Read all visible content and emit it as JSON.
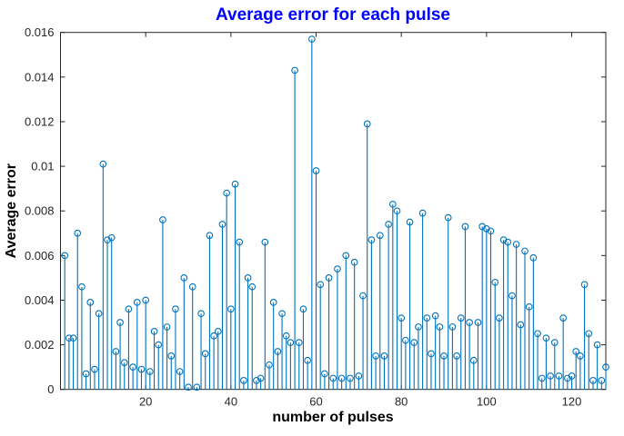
{
  "figure": {
    "background": "#ffffff"
  },
  "chart_data": {
    "type": "stem",
    "title": "Average error for each pulse",
    "xlabel": "number of pulses",
    "ylabel": "Average error",
    "title_color": "#0000ff",
    "stem_color": "#0072bd",
    "axis_color": "#262626",
    "marker": "open-circle",
    "grid": false,
    "legend": "none",
    "xlim": [
      0,
      128
    ],
    "ylim": [
      0,
      0.016
    ],
    "xticks": [
      20,
      40,
      60,
      80,
      100,
      120
    ],
    "xtick_labels": [
      "20",
      "40",
      "60",
      "80",
      "100",
      "120"
    ],
    "yticks": [
      0,
      0.002,
      0.004,
      0.006,
      0.008,
      0.01,
      0.012,
      0.014,
      0.016
    ],
    "ytick_labels": [
      "0",
      "0.002",
      "0.004",
      "0.006",
      "0.008",
      "0.01",
      "0.012",
      "0.014",
      "0.016"
    ],
    "x_start": 1,
    "values": [
      0.006,
      0.0023,
      0.0023,
      0.007,
      0.0046,
      0.0007,
      0.0039,
      0.0009,
      0.0034,
      0.0101,
      0.0067,
      0.0068,
      0.0017,
      0.003,
      0.0012,
      0.0036,
      0.001,
      0.0039,
      0.0009,
      0.004,
      0.0008,
      0.0026,
      0.002,
      0.0076,
      0.0028,
      0.0015,
      0.0036,
      0.0008,
      0.005,
      0.0001,
      0.0046,
      0.0001,
      0.0034,
      0.0016,
      0.0069,
      0.0024,
      0.0026,
      0.0074,
      0.0088,
      0.0036,
      0.0092,
      0.0066,
      0.0004,
      0.005,
      0.0046,
      0.0004,
      0.0005,
      0.0066,
      0.0011,
      0.0039,
      0.0017,
      0.0034,
      0.0024,
      0.0021,
      0.0143,
      0.0021,
      0.0036,
      0.0013,
      0.0157,
      0.0098,
      0.0047,
      0.0007,
      0.005,
      0.0005,
      0.0054,
      0.0005,
      0.006,
      0.0005,
      0.0057,
      0.0006,
      0.0042,
      0.0119,
      0.0067,
      0.0015,
      0.0069,
      0.0015,
      0.0074,
      0.0083,
      0.008,
      0.0032,
      0.0022,
      0.0075,
      0.0021,
      0.0028,
      0.0079,
      0.0032,
      0.0016,
      0.0033,
      0.0028,
      0.0015,
      0.0077,
      0.0028,
      0.0015,
      0.0032,
      0.0073,
      0.003,
      0.0013,
      0.003,
      0.0073,
      0.0072,
      0.0071,
      0.0048,
      0.0032,
      0.0067,
      0.0066,
      0.0042,
      0.0065,
      0.0029,
      0.0062,
      0.0037,
      0.0059,
      0.0025,
      0.0005,
      0.0023,
      0.0006,
      0.0021,
      0.0006,
      0.0032,
      0.0005,
      0.0006,
      0.0017,
      0.0015,
      0.0047,
      0.0025,
      0.0004,
      0.002,
      0.0004,
      0.001
    ]
  }
}
